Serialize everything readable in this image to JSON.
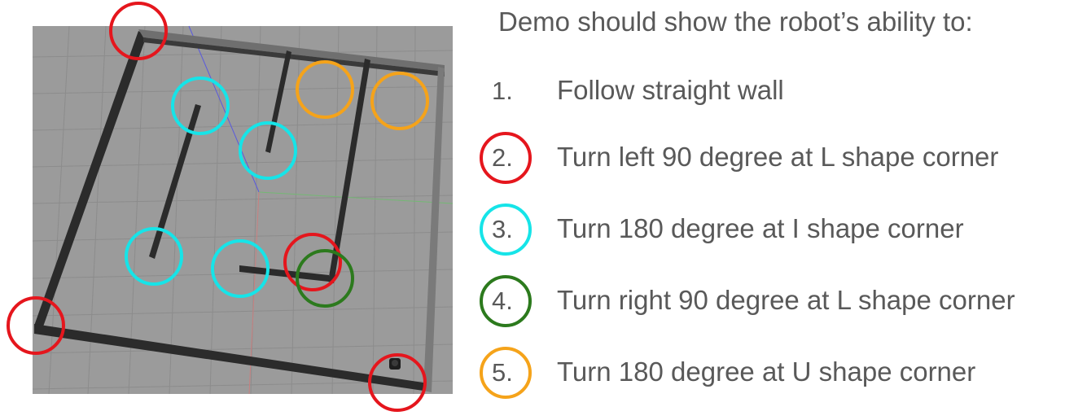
{
  "heading": "Demo should show the robot’s ability to:",
  "items": [
    {
      "number": "1.",
      "label": "Follow straight wall",
      "ring_color": null
    },
    {
      "number": "2.",
      "label": "Turn left 90 degree at L shape corner",
      "ring_color": "#e5161d"
    },
    {
      "number": "3.",
      "label": "Turn 180 degree at I shape corner",
      "ring_color": "#16e4e8"
    },
    {
      "number": "4.",
      "label": "Turn right 90 degree at L shape corner",
      "ring_color": "#2c7a1d"
    },
    {
      "number": "5.",
      "label": "Turn 180 degree at U shape corner",
      "ring_color": "#f5a31a"
    }
  ],
  "colors": {
    "text": "#595959",
    "floor": "#9b9b9b",
    "grid": "#8a8a8a",
    "wall": "#2b2b2b",
    "wall_top": "#6e6e6e",
    "red": "#e5161d",
    "cyan": "#16e4e8",
    "green": "#2c7a1d",
    "orange": "#f5a31a"
  }
}
